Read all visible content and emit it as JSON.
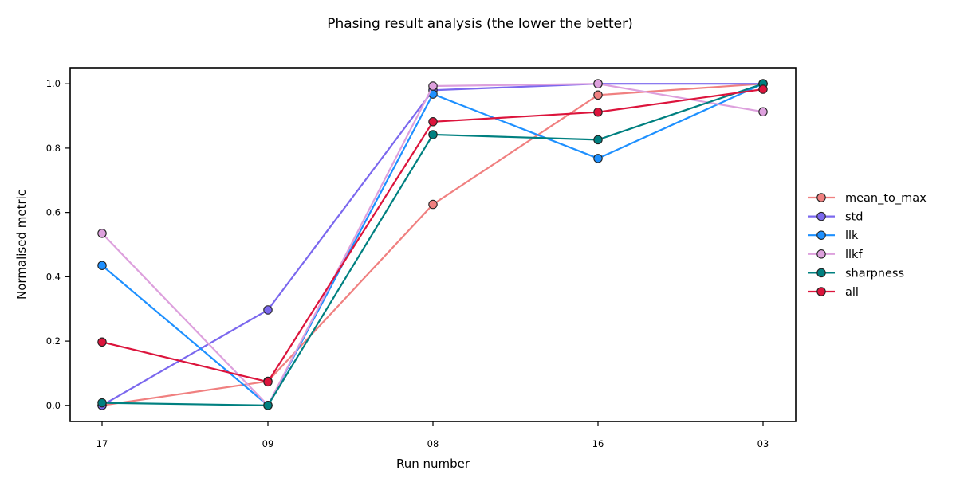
{
  "chart_data": {
    "type": "line",
    "title": "Phasing result analysis (the lower the better)",
    "xlabel": "Run number",
    "ylabel": "Normalised metric",
    "categories": [
      "17",
      "09",
      "08",
      "16",
      "03"
    ],
    "ylim": [
      -0.05,
      1.05
    ],
    "yticks": [
      "0.0",
      "0.2",
      "0.4",
      "0.6",
      "0.8",
      "1.0"
    ],
    "grid": false,
    "legend_position": "right",
    "series": [
      {
        "name": "mean_to_max",
        "color": "#f08080",
        "values": [
          0.0,
          0.075,
          0.625,
          0.965,
          1.0
        ]
      },
      {
        "name": "std",
        "color": "#7b68ee",
        "values": [
          0.0,
          0.297,
          0.98,
          1.0,
          1.0
        ]
      },
      {
        "name": "llk",
        "color": "#1e90ff",
        "values": [
          0.435,
          0.0,
          0.968,
          0.768,
          1.0
        ]
      },
      {
        "name": "llkf",
        "color": "#dda0dd",
        "values": [
          0.535,
          0.0,
          0.993,
          1.0,
          0.913
        ]
      },
      {
        "name": "sharpness",
        "color": "#008080",
        "values": [
          0.008,
          0.0,
          0.842,
          0.826,
          1.0
        ]
      },
      {
        "name": "all",
        "color": "#dc143c",
        "values": [
          0.197,
          0.073,
          0.882,
          0.912,
          0.983
        ]
      }
    ]
  }
}
